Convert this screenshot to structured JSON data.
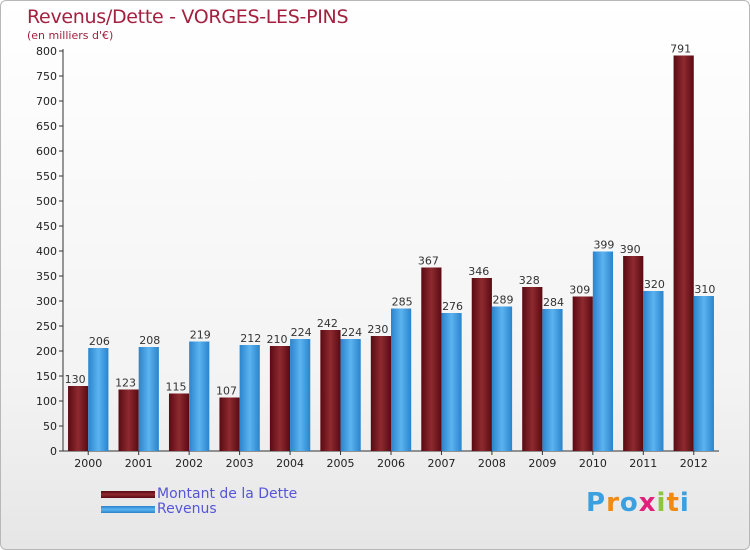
{
  "title": "Revenus/Dette - VORGES-LES-PINS",
  "subtitle": "(en milliers d'€)",
  "chart_data": {
    "type": "bar",
    "title": "Revenus/Dette - VORGES-LES-PINS",
    "subtitle": "(en milliers d'€)",
    "categories": [
      "2000",
      "2001",
      "2002",
      "2003",
      "2004",
      "2005",
      "2006",
      "2007",
      "2008",
      "2009",
      "2010",
      "2011",
      "2012"
    ],
    "series": [
      {
        "name": "Montant de la Dette",
        "values": [
          130,
          123,
          115,
          107,
          210,
          242,
          230,
          367,
          346,
          328,
          309,
          390,
          791
        ],
        "color": "#7a1a22"
      },
      {
        "name": "Revenus",
        "values": [
          206,
          208,
          219,
          212,
          224,
          224,
          285,
          276,
          289,
          284,
          399,
          320,
          310
        ],
        "color": "#3d9ee0"
      }
    ],
    "ylim": [
      0,
      800
    ],
    "yticks": [
      0,
      50,
      100,
      150,
      200,
      250,
      300,
      350,
      400,
      450,
      500,
      550,
      600,
      650,
      700,
      750,
      800
    ],
    "grid": false,
    "legend": "bottom-left"
  },
  "legend": [
    {
      "label": "Montant de la Dette",
      "color": "#7a1a22"
    },
    {
      "label": "Revenus",
      "color": "#3d9ee0"
    }
  ],
  "logo": [
    "P",
    "r",
    "o",
    "x",
    "i",
    "t",
    "i"
  ],
  "logo_colors": [
    "#3aa0e0",
    "#f08a10",
    "#3aa0e0",
    "#e0207a",
    "#8cc63f",
    "#f08a10",
    "#3aa0e0"
  ]
}
